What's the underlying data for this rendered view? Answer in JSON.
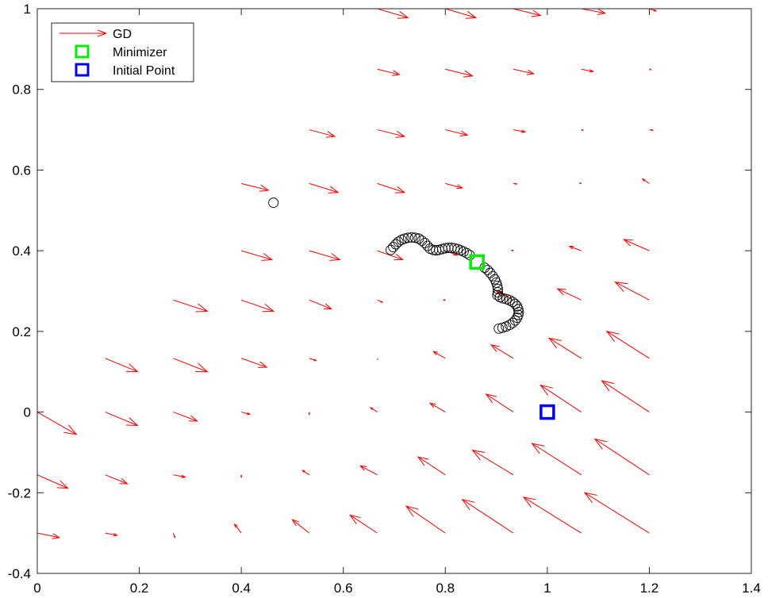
{
  "chart_data": {
    "type": "quiver",
    "xlim": [
      0,
      1.4
    ],
    "ylim": [
      -0.4,
      1
    ],
    "x_ticks": [
      0,
      0.2,
      0.4,
      0.6,
      0.8,
      1,
      1.2,
      1.4
    ],
    "y_ticks": [
      -0.4,
      -0.2,
      0,
      0.2,
      0.4,
      0.6,
      0.8,
      1
    ],
    "x_tick_labels": [
      "0",
      "0.2",
      "0.4",
      "0.6",
      "0.8",
      "1",
      "1.2",
      "1.4"
    ],
    "y_tick_labels": [
      "-0.4",
      "-0.2",
      "0",
      "0.2",
      "0.4",
      "0.6",
      "0.8",
      "1"
    ],
    "grid": false,
    "legend": {
      "position": "top-left",
      "entries": [
        {
          "label": "GD",
          "marker": "arrow",
          "color": "#ff0000"
        },
        {
          "label": "Minimizer",
          "marker": "square",
          "color": "#00ee00"
        },
        {
          "label": "Initial Point",
          "marker": "square",
          "color": "#0000ee"
        }
      ]
    },
    "quiver_field": {
      "color": "#ff0000",
      "columns_x": [
        0,
        0.1333,
        0.2667,
        0.4,
        0.5333,
        0.6667,
        0.8,
        0.9333,
        1.0667,
        1.2
      ],
      "rows_y": [
        1.0,
        0.85,
        0.7,
        0.5667,
        0.4,
        0.2778,
        0.1333,
        0,
        -0.1556,
        -0.3
      ],
      "vectors": [
        [
          null,
          null,
          null,
          null,
          null,
          [
            0.06,
            -0.0222
          ],
          [
            0.06,
            -0.0222
          ],
          [
            0.0533,
            -0.0167
          ],
          [
            0.0467,
            -0.0111
          ],
          [
            0.0133,
            -0.0056
          ]
        ],
        [
          null,
          null,
          null,
          null,
          null,
          [
            0.0433,
            -0.0133
          ],
          [
            0.0533,
            -0.0167
          ],
          [
            0.04,
            -0.0111
          ],
          [
            0.0233,
            -0.0056
          ],
          [
            0.0033,
            -0.0011
          ]
        ],
        [
          null,
          null,
          null,
          null,
          [
            0.05,
            -0.0167
          ],
          [
            0.0533,
            -0.0167
          ],
          [
            0.0433,
            -0.0133
          ],
          [
            0.0233,
            -0.0056
          ],
          [
            0.0033,
            -0.0011
          ],
          [
            0.0067,
            -0.0011
          ]
        ],
        [
          null,
          null,
          null,
          [
            0.0533,
            -0.0167
          ],
          [
            0.0567,
            -0.0222
          ],
          [
            0.0533,
            -0.0222
          ],
          [
            0.0333,
            -0.0111
          ],
          [
            0.0067,
            -0.0011
          ],
          [
            -0.0033,
            0.0011
          ],
          [
            -0.0133,
            0.0111
          ]
        ],
        [
          null,
          null,
          null,
          [
            0.06,
            -0.0222
          ],
          [
            0.06,
            -0.0222
          ],
          [
            0.05,
            -0.0222
          ],
          [
            0.0233,
            -0.0111
          ],
          [
            -0.0033,
            0.0011
          ],
          [
            -0.0233,
            0.0111
          ],
          [
            -0.05,
            0.0278
          ]
        ],
        [
          null,
          null,
          [
            0.0667,
            -0.0278
          ],
          [
            0.0633,
            -0.0278
          ],
          [
            0.0433,
            -0.0222
          ],
          [
            0.01,
            -0.0056
          ],
          [
            -0.0033,
            0.0
          ],
          [
            -0.0333,
            0.0222
          ],
          [
            -0.0467,
            0.0278
          ],
          [
            -0.0667,
            0.0444
          ]
        ],
        [
          null,
          [
            0.0633,
            -0.0333
          ],
          [
            0.0667,
            -0.0333
          ],
          [
            0.05,
            -0.0222
          ],
          [
            0.0133,
            -0.0056
          ],
          [
            0.0,
            0.0
          ],
          [
            -0.0233,
            0.0167
          ],
          [
            -0.0433,
            0.0333
          ],
          [
            -0.0633,
            0.05
          ],
          [
            -0.0833,
            0.0667
          ]
        ],
        [
          [
            0.0767,
            -0.0556
          ],
          [
            0.0633,
            -0.0333
          ],
          [
            0.0467,
            -0.0222
          ],
          [
            0.0167,
            -0.0056
          ],
          [
            0.0,
            -0.0056
          ],
          [
            -0.0133,
            0.0111
          ],
          [
            -0.03,
            0.0222
          ],
          [
            -0.0533,
            0.0444
          ],
          [
            -0.08,
            0.0667
          ],
          [
            -0.0933,
            0.0778
          ]
        ],
        [
          [
            0.06,
            -0.0333
          ],
          [
            0.0433,
            -0.0222
          ],
          [
            0.0233,
            -0.0056
          ],
          [
            0.0,
            -0.0056
          ],
          [
            -0.0133,
            0.0111
          ],
          [
            -0.0333,
            0.0222
          ],
          [
            -0.0533,
            0.0444
          ],
          [
            -0.08,
            0.0611
          ],
          [
            -0.0967,
            0.0778
          ],
          [
            -0.1067,
            0.0889
          ]
        ],
        [
          [
            0.0433,
            -0.0111
          ],
          [
            0.0233,
            -0.0056
          ],
          [
            0.0033,
            -0.0111
          ],
          [
            -0.0133,
            0.0222
          ],
          [
            -0.0333,
            0.0333
          ],
          [
            -0.0533,
            0.0444
          ],
          [
            -0.0767,
            0.0667
          ],
          [
            -0.1,
            0.0833
          ],
          [
            -0.1133,
            0.0889
          ],
          [
            -0.1267,
            0.1
          ]
        ]
      ]
    },
    "iterates": {
      "marker": "circle",
      "color": "#000000",
      "points": [
        [
          0.463,
          0.519
        ],
        [
          0.693,
          0.402
        ],
        [
          0.698,
          0.409
        ],
        [
          0.703,
          0.416
        ],
        [
          0.708,
          0.422
        ],
        [
          0.714,
          0.427
        ],
        [
          0.72,
          0.43
        ],
        [
          0.727,
          0.432
        ],
        [
          0.734,
          0.433
        ],
        [
          0.741,
          0.432
        ],
        [
          0.748,
          0.43
        ],
        [
          0.754,
          0.425
        ],
        [
          0.76,
          0.419
        ],
        [
          0.765,
          0.412
        ],
        [
          0.77,
          0.405
        ],
        [
          0.776,
          0.402
        ],
        [
          0.782,
          0.401
        ],
        [
          0.788,
          0.402
        ],
        [
          0.794,
          0.404
        ],
        [
          0.8,
          0.406
        ],
        [
          0.806,
          0.407
        ],
        [
          0.812,
          0.407
        ],
        [
          0.818,
          0.406
        ],
        [
          0.824,
          0.404
        ],
        [
          0.83,
          0.401
        ],
        [
          0.836,
          0.398
        ],
        [
          0.842,
          0.394
        ],
        [
          0.848,
          0.389
        ],
        [
          0.877,
          0.358
        ],
        [
          0.883,
          0.352
        ],
        [
          0.888,
          0.345
        ],
        [
          0.893,
          0.337
        ],
        [
          0.897,
          0.329
        ],
        [
          0.9,
          0.321
        ],
        [
          0.902,
          0.313
        ],
        [
          0.903,
          0.305
        ],
        [
          0.903,
          0.297
        ],
        [
          0.902,
          0.29
        ],
        [
          0.907,
          0.285
        ],
        [
          0.913,
          0.282
        ],
        [
          0.92,
          0.28
        ],
        [
          0.926,
          0.277
        ],
        [
          0.932,
          0.273
        ],
        [
          0.937,
          0.268
        ],
        [
          0.941,
          0.262
        ],
        [
          0.943,
          0.255
        ],
        [
          0.944,
          0.248
        ],
        [
          0.943,
          0.241
        ],
        [
          0.941,
          0.234
        ],
        [
          0.937,
          0.227
        ],
        [
          0.932,
          0.221
        ],
        [
          0.926,
          0.216
        ],
        [
          0.919,
          0.212
        ],
        [
          0.912,
          0.209
        ],
        [
          0.905,
          0.207
        ]
      ]
    },
    "minimizer": {
      "x": 0.862,
      "y": 0.372,
      "color": "#00ee00"
    },
    "initial_point": {
      "x": 1.0,
      "y": 0.0,
      "color": "#0000ee"
    }
  }
}
